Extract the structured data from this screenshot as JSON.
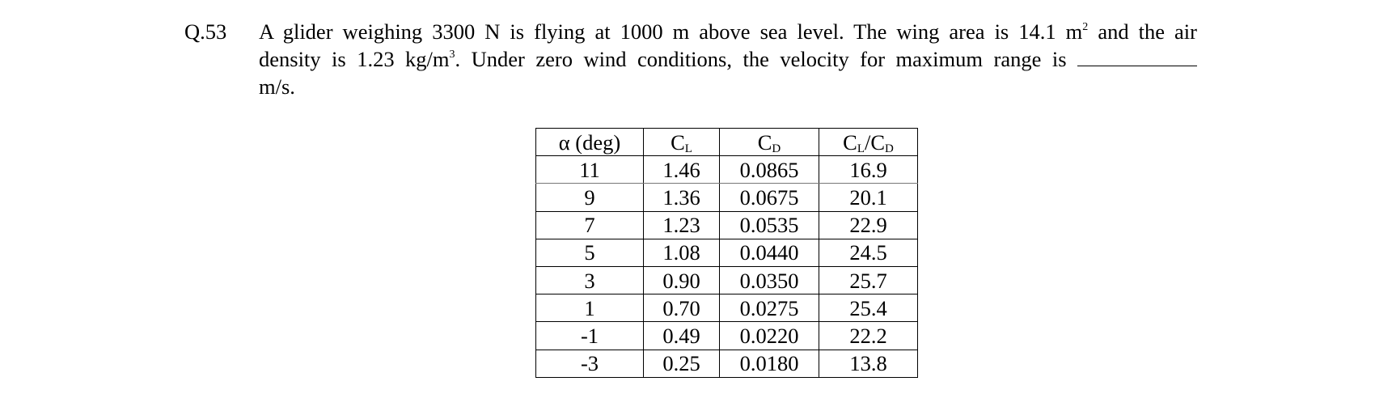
{
  "question": {
    "number": "Q.53",
    "line1_before_m2": "A glider weighing 3300 N is flying at 1000 m above sea level. The wing area is 14.1 m",
    "line1_sup": "2",
    "line1_after": " and the air",
    "line2_before_m3": "density is 1.23 kg/m",
    "line2_sup": "3",
    "line2_after": ". Under zero wind conditions, the velocity for maximum range is",
    "line3": "m/s."
  },
  "table": {
    "headers": [
      {
        "main": "α  (deg)",
        "sub": ""
      },
      {
        "main": "C",
        "sub": "L"
      },
      {
        "main": "C",
        "sub": "D"
      },
      {
        "main": "C",
        "sub": "L",
        "mid": "/C",
        "sub2": "D"
      }
    ],
    "rows": [
      [
        "11",
        "1.46",
        "0.0865",
        "16.9"
      ],
      [
        "9",
        "1.36",
        "0.0675",
        "20.1"
      ],
      [
        "7",
        "1.23",
        "0.0535",
        "22.9"
      ],
      [
        "5",
        "1.08",
        "0.0440",
        "24.5"
      ],
      [
        "3",
        "0.90",
        "0.0350",
        "25.7"
      ],
      [
        "1",
        "0.70",
        "0.0275",
        "25.4"
      ],
      [
        "-1",
        "0.49",
        "0.0220",
        "22.2"
      ],
      [
        "-3",
        "0.25",
        "0.0180",
        "13.8"
      ]
    ]
  }
}
